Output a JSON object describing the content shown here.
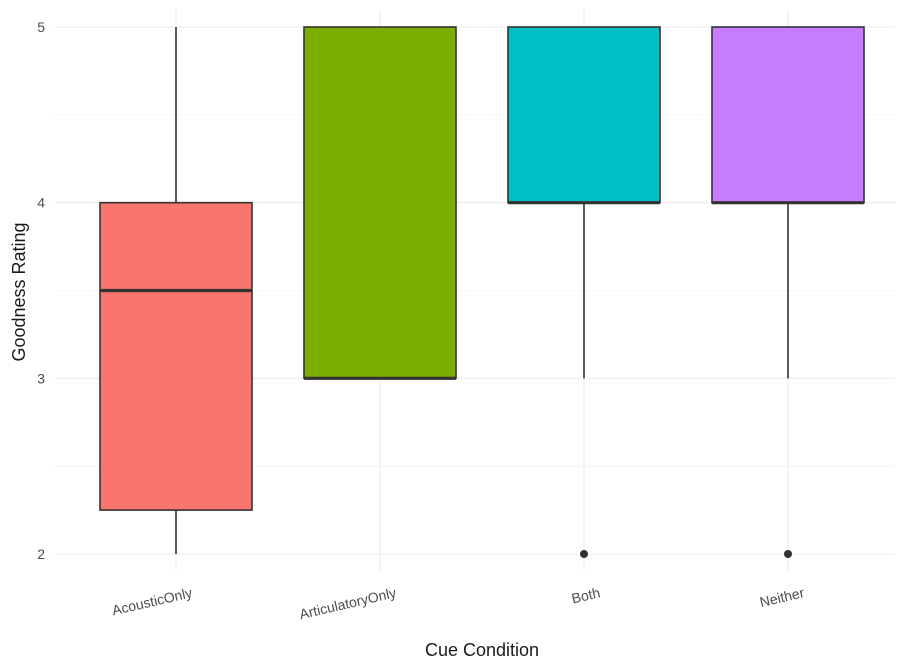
{
  "chart_data": {
    "type": "boxplot",
    "title": "",
    "xlabel": "Cue Condition",
    "ylabel": "Goodness Rating",
    "ylim": [
      1.95,
      5.05
    ],
    "yticks": [
      2,
      3,
      4,
      5
    ],
    "grid": true,
    "legend": "none",
    "categories": [
      "AcousticOnly",
      "ArticulatoryOnly",
      "Both",
      "Neither"
    ],
    "boxes": [
      {
        "category": "AcousticOnly",
        "whisker_low": 2,
        "q1": 2.25,
        "median": 3.5,
        "q3": 4,
        "whisker_high": 5,
        "outliers": [],
        "color": "#F8766D"
      },
      {
        "category": "ArticulatoryOnly",
        "whisker_low": 3,
        "q1": 3,
        "median": 3,
        "q3": 5,
        "whisker_high": 5,
        "outliers": [],
        "color": "#7CAE00"
      },
      {
        "category": "Both",
        "whisker_low": 3,
        "q1": 4,
        "median": 4,
        "q3": 5,
        "whisker_high": 5,
        "outliers": [
          2
        ],
        "color": "#00BFC4"
      },
      {
        "category": "Neither",
        "whisker_low": 3,
        "q1": 4,
        "median": 4,
        "q3": 5,
        "whisker_high": 5,
        "outliers": [
          2
        ],
        "color": "#C77CFF"
      }
    ]
  }
}
